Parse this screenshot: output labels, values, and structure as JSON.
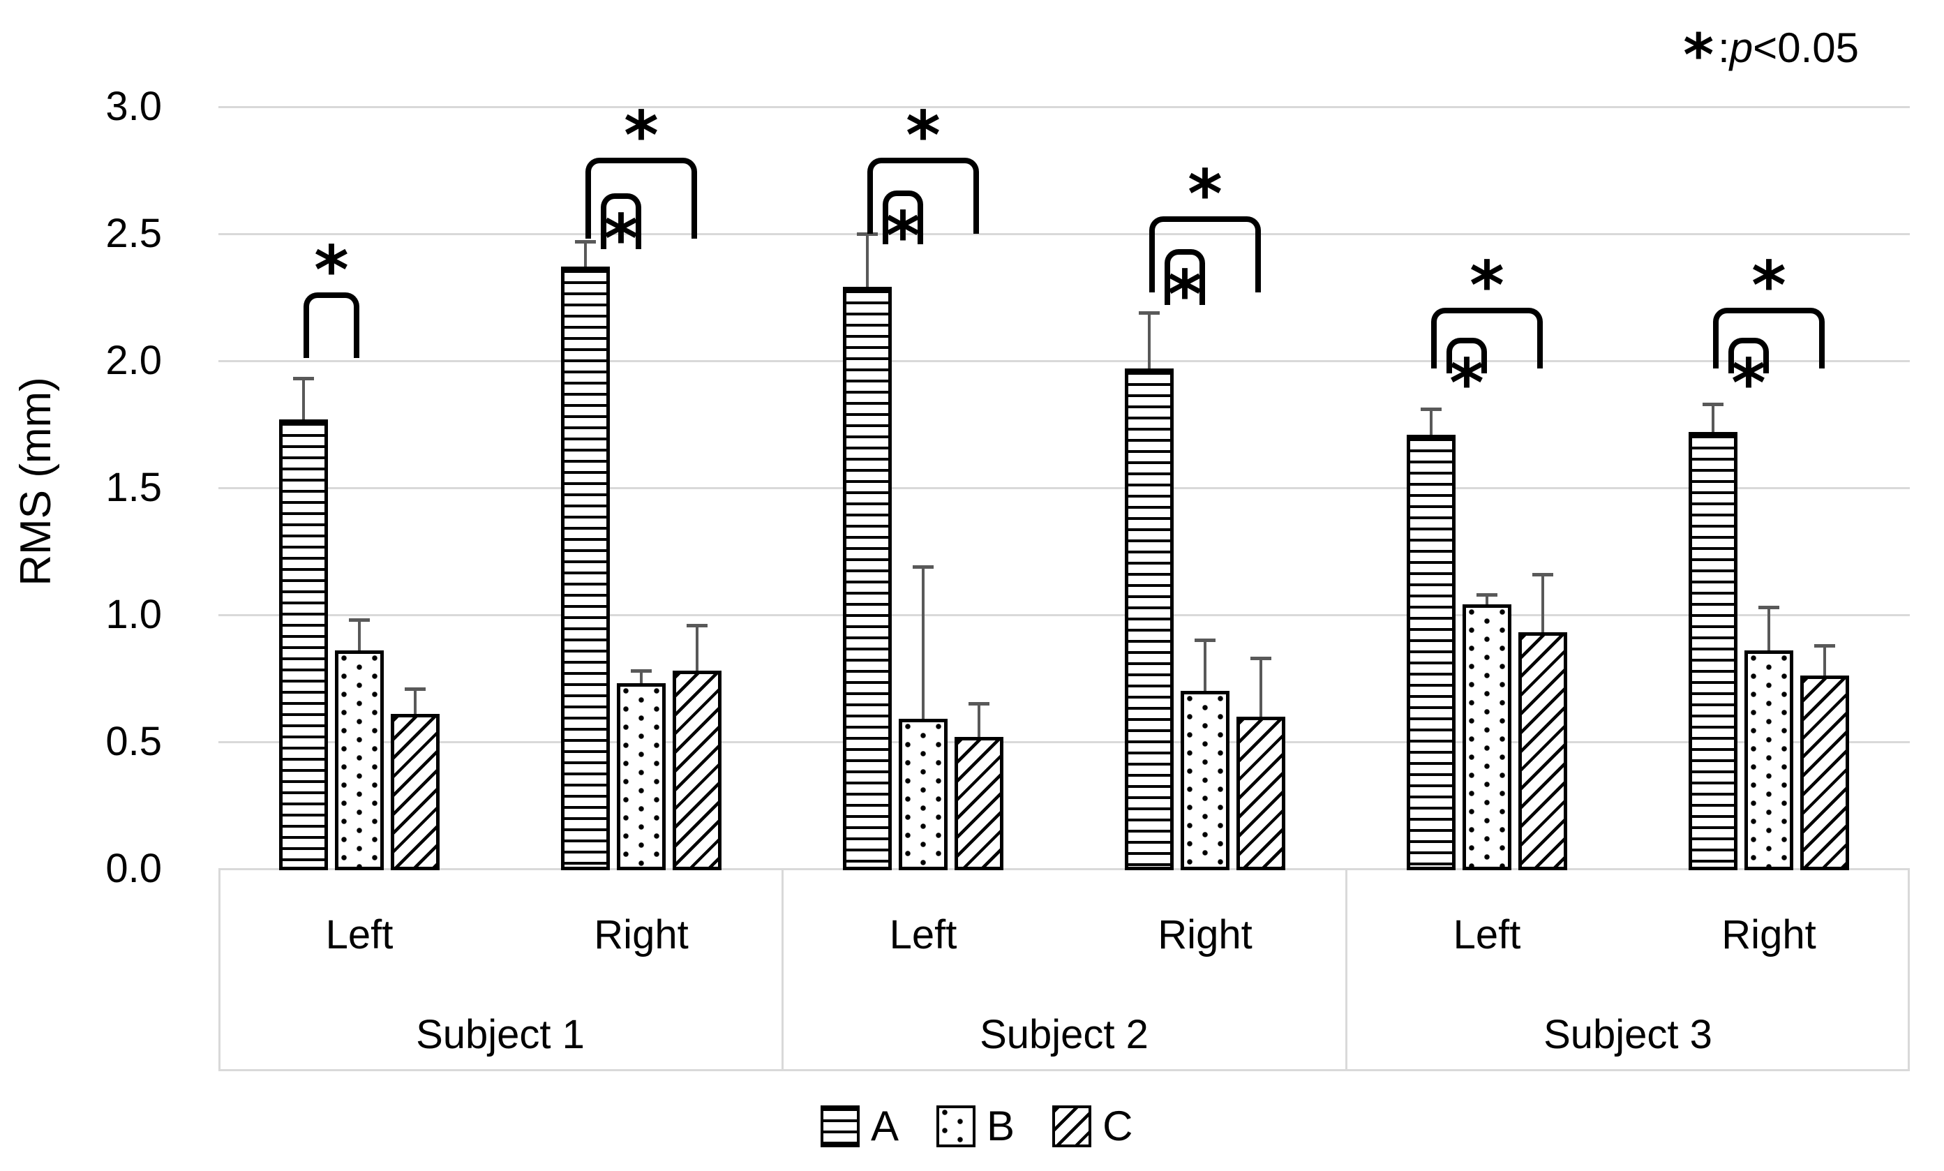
{
  "colors": {
    "bar_outline": "#000000",
    "error_bar": "#595959",
    "gridline": "#d9d9d9",
    "text": "#000000",
    "background": "#ffffff"
  },
  "annotation": {
    "star": "*",
    "colon": " : ",
    "p": "p",
    "rest": "<0.05"
  },
  "y_axis": {
    "title": "RMS (mm)",
    "tick_labels": [
      "0.0",
      "0.5",
      "1.0",
      "1.5",
      "2.0",
      "2.5",
      "3.0"
    ]
  },
  "legend": [
    {
      "label": "A",
      "pattern": "horizontal-lines"
    },
    {
      "label": "B",
      "pattern": "dots"
    },
    {
      "label": "C",
      "pattern": "diagonal-lines"
    }
  ],
  "chart_data": {
    "type": "bar",
    "title": "",
    "xlabel": "",
    "ylabel": "RMS (mm)",
    "ylim": [
      0,
      3.0
    ],
    "ytick_step": 0.5,
    "grid": "horizontal",
    "legend_position": "bottom",
    "significance_note": "* : p<0.05",
    "subjects": [
      "Subject 1",
      "Subject 2",
      "Subject 3"
    ],
    "sides": [
      "Left",
      "Right"
    ],
    "categories": [
      {
        "subject": "Subject 1",
        "side": "Left"
      },
      {
        "subject": "Subject 1",
        "side": "Right"
      },
      {
        "subject": "Subject 2",
        "side": "Left"
      },
      {
        "subject": "Subject 2",
        "side": "Right"
      },
      {
        "subject": "Subject 3",
        "side": "Left"
      },
      {
        "subject": "Subject 3",
        "side": "Right"
      }
    ],
    "series": [
      {
        "name": "A",
        "pattern": "horizontal-lines",
        "values": [
          1.77,
          2.37,
          2.29,
          1.97,
          1.71,
          1.72
        ],
        "errors": [
          0.16,
          0.1,
          0.21,
          0.22,
          0.1,
          0.11
        ]
      },
      {
        "name": "B",
        "pattern": "dots",
        "values": [
          0.86,
          0.73,
          0.59,
          0.7,
          1.04,
          0.86
        ],
        "errors": [
          0.12,
          0.05,
          0.6,
          0.2,
          0.04,
          0.17
        ]
      },
      {
        "name": "C",
        "pattern": "diagonal-lines",
        "values": [
          0.61,
          0.78,
          0.52,
          0.6,
          0.93,
          0.76
        ],
        "errors": [
          0.1,
          0.18,
          0.13,
          0.23,
          0.23,
          0.12
        ]
      }
    ],
    "significance": [
      {
        "category": 0,
        "from": "A",
        "to": "B",
        "top": 2.27,
        "leg_bottom": 2.01,
        "star": "above",
        "inset": false
      },
      {
        "category": 1,
        "from": "A",
        "to": "C",
        "top": 2.8,
        "leg_bottom": 2.48,
        "star": "above",
        "inset": false
      },
      {
        "category": 1,
        "from": "A",
        "to": "B",
        "top": 2.66,
        "leg_bottom": 2.44,
        "star": "below",
        "inset": true
      },
      {
        "category": 2,
        "from": "A",
        "to": "C",
        "top": 2.8,
        "leg_bottom": 2.5,
        "star": "above",
        "inset": false
      },
      {
        "category": 2,
        "from": "A",
        "to": "B",
        "top": 2.67,
        "leg_bottom": 2.46,
        "star": "below",
        "inset": true
      },
      {
        "category": 3,
        "from": "A",
        "to": "C",
        "top": 2.57,
        "leg_bottom": 2.27,
        "star": "above",
        "inset": false
      },
      {
        "category": 3,
        "from": "A",
        "to": "B",
        "top": 2.44,
        "leg_bottom": 2.22,
        "star": "below",
        "inset": true
      },
      {
        "category": 4,
        "from": "A",
        "to": "C",
        "top": 2.21,
        "leg_bottom": 1.97,
        "star": "above",
        "inset": false
      },
      {
        "category": 4,
        "from": "A",
        "to": "B",
        "top": 2.09,
        "leg_bottom": 1.95,
        "star": "below",
        "inset": true
      },
      {
        "category": 5,
        "from": "A",
        "to": "C",
        "top": 2.21,
        "leg_bottom": 1.97,
        "star": "above",
        "inset": false
      },
      {
        "category": 5,
        "from": "A",
        "to": "B",
        "top": 2.09,
        "leg_bottom": 1.95,
        "star": "below",
        "inset": true
      }
    ]
  }
}
